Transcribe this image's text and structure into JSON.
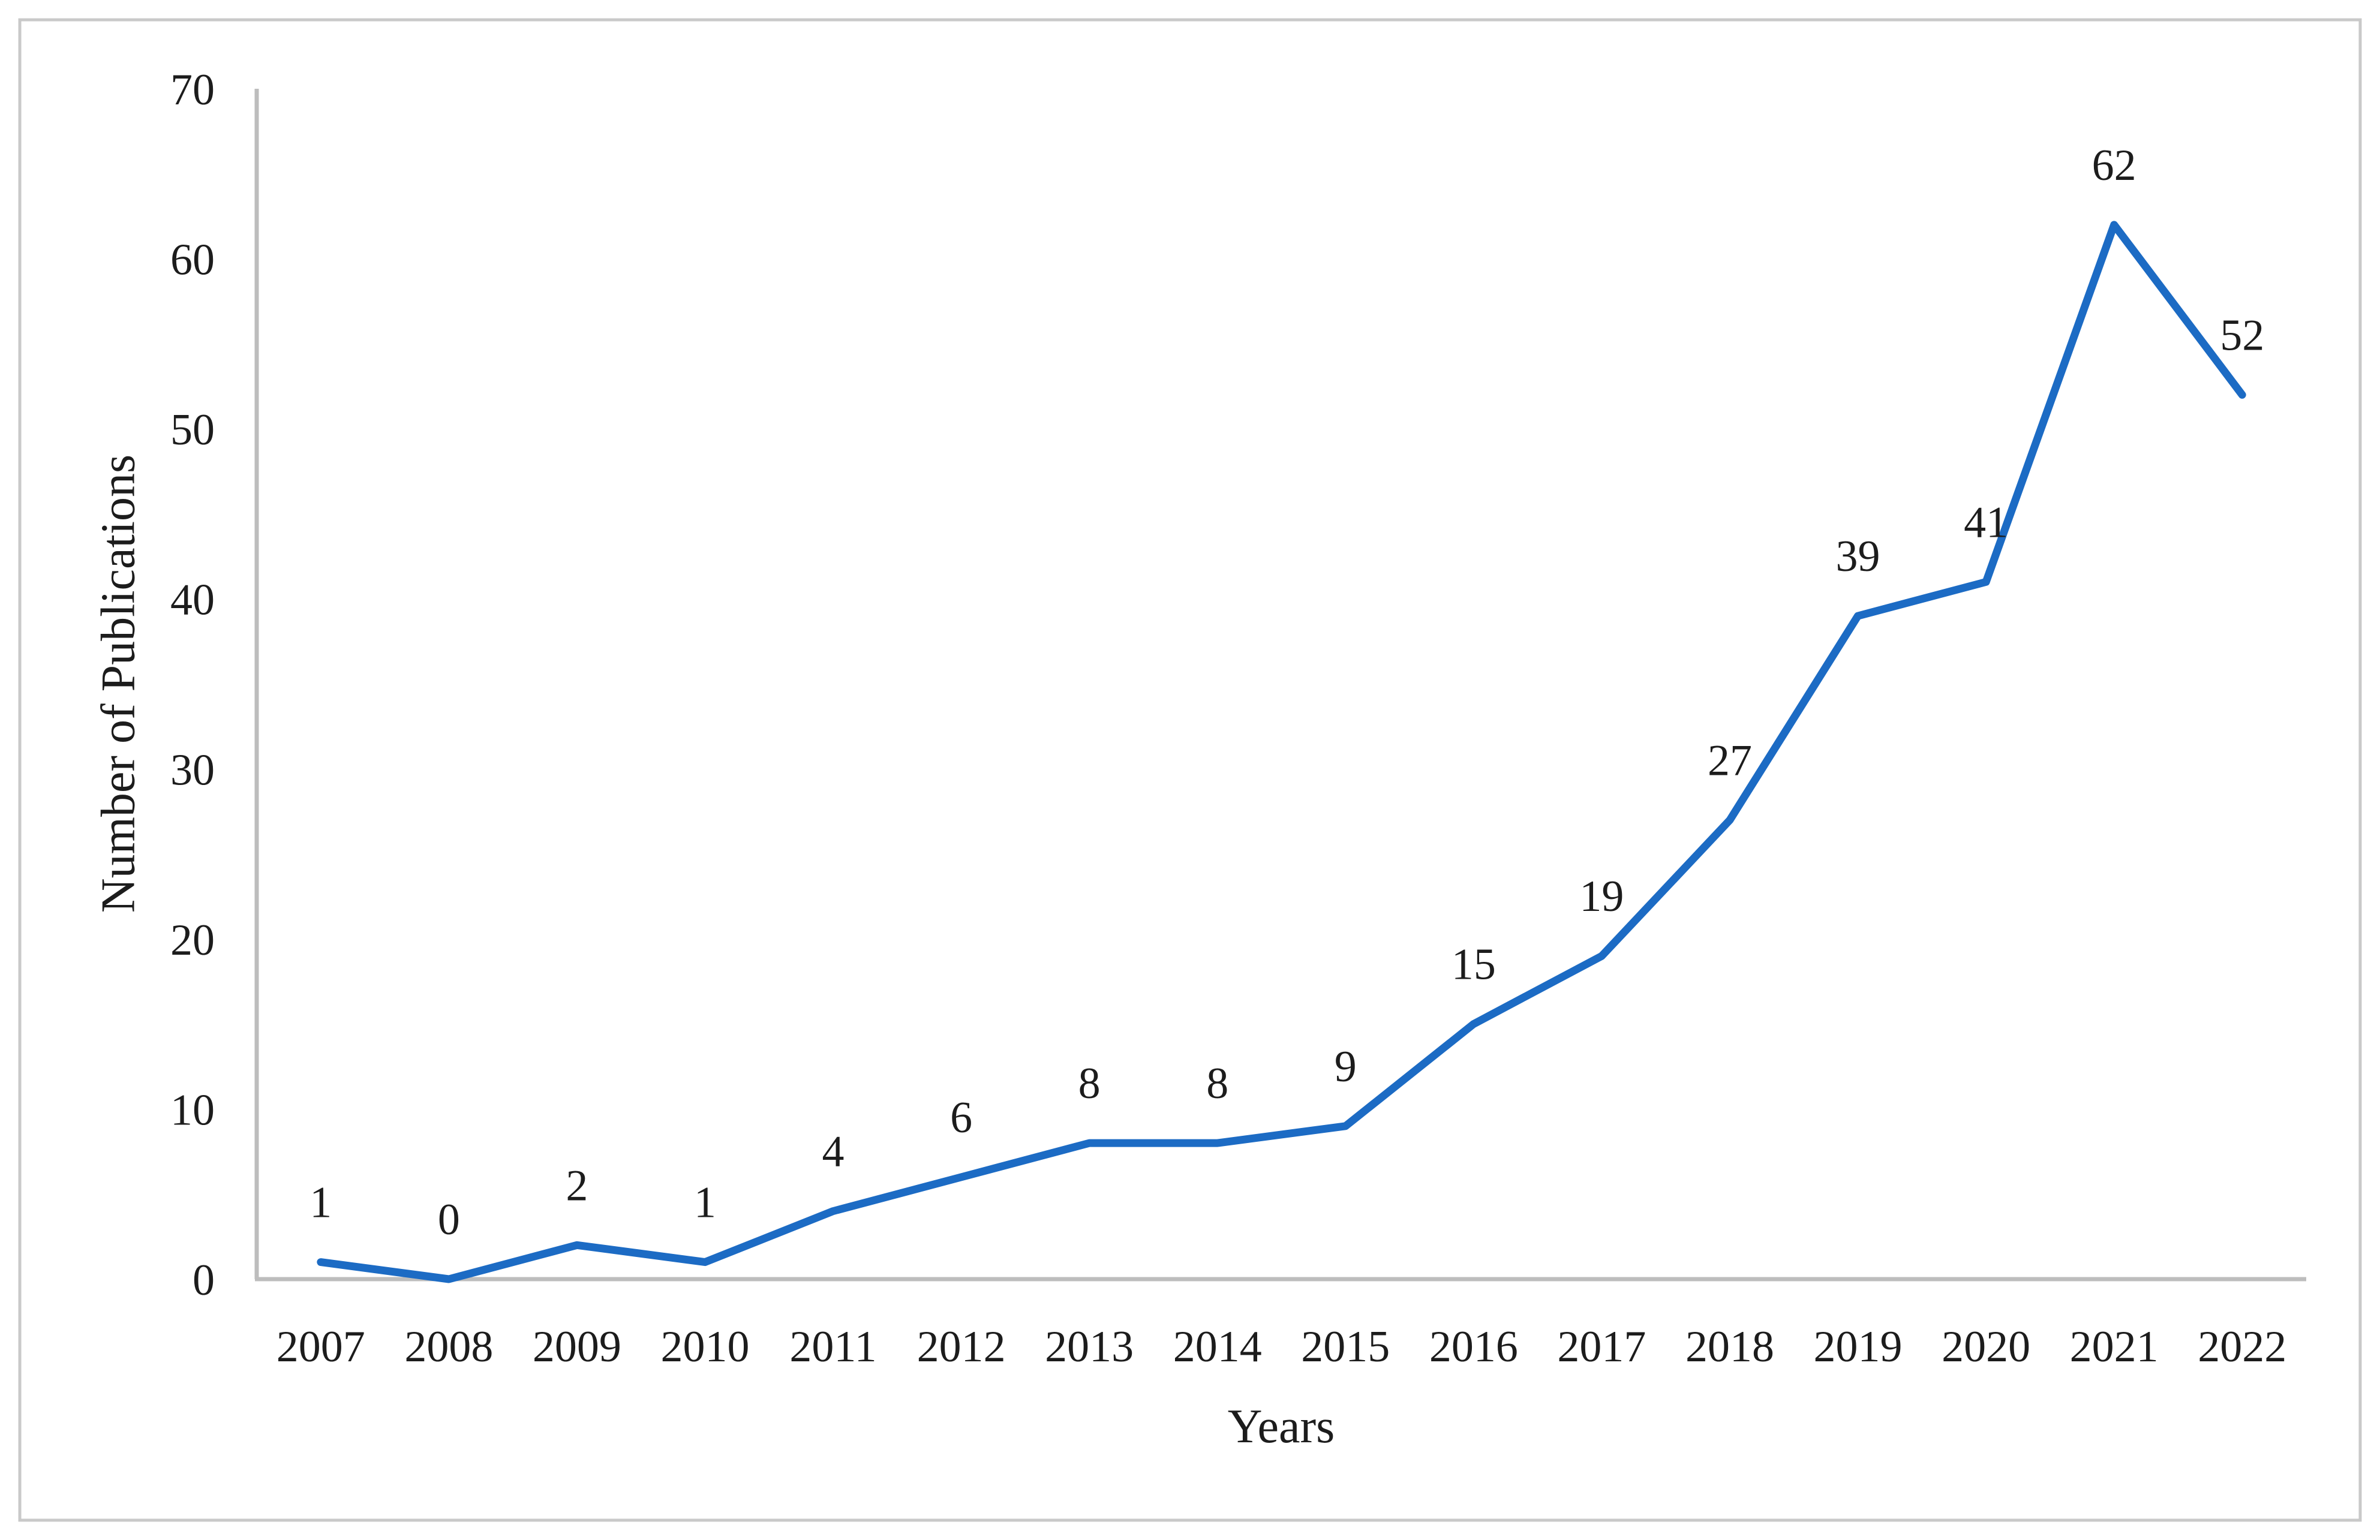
{
  "chart_data": {
    "type": "line",
    "categories": [
      "2007",
      "2008",
      "2009",
      "2010",
      "2011",
      "2012",
      "2013",
      "2014",
      "2015",
      "2016",
      "2017",
      "2018",
      "2019",
      "2020",
      "2021",
      "2022"
    ],
    "values": [
      1,
      0,
      2,
      1,
      4,
      6,
      8,
      8,
      9,
      15,
      19,
      27,
      39,
      41,
      62,
      52
    ],
    "title": "",
    "xlabel": "Years",
    "ylabel": "Number of Publications",
    "ylim": [
      0,
      70
    ],
    "yticks": [
      0,
      10,
      20,
      30,
      40,
      50,
      60,
      70
    ],
    "grid": false,
    "legend": false,
    "data_labels": true,
    "data_label_position": "above",
    "line_color": "#1c6bc4",
    "axis_color": "#bdbdbd",
    "text_color": "#1c1c1c",
    "frame_color": "#c9c9c9",
    "background_color": "#ffffff"
  }
}
